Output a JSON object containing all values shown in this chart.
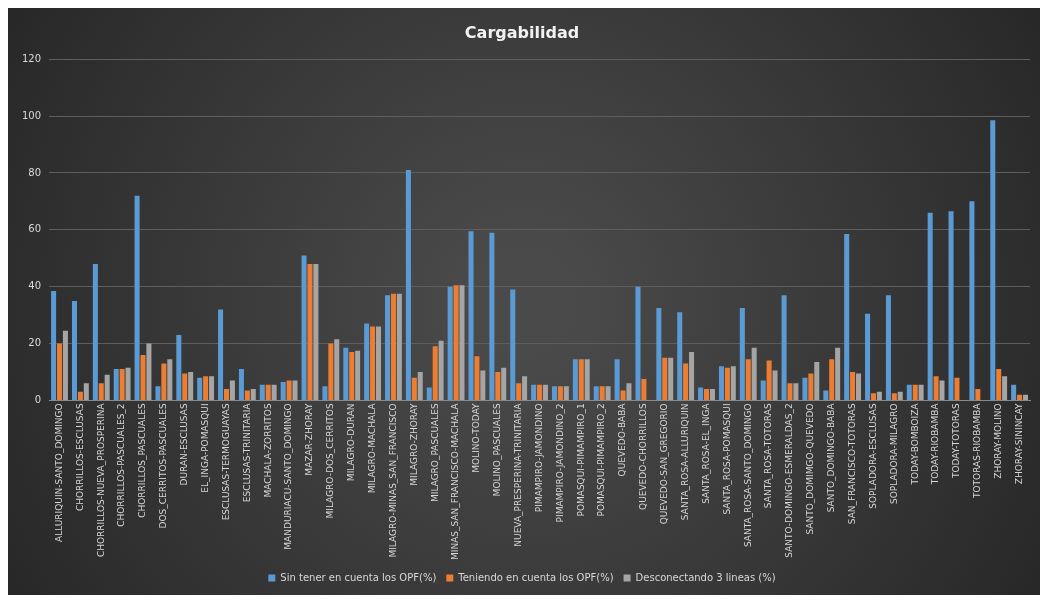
{
  "chart_data": {
    "type": "bar",
    "title": "Cargabilidad",
    "categories": [
      "ALLURIQUIN-SANTO_DOMINGO",
      "CHORRILLOS-ESCLUSAS",
      "CHORRILLOS-NUEVA_PROSPERINA",
      "CHORRILLOS-PASCUALES_2",
      "CHORRILLOS_PASCUALES",
      "DOS_CERRITOS-PASCUALES",
      "DURAN-ESCLUSAS",
      "EL_INGA-POMASQUI",
      "ESCLUSAS-TERMOGUAYAS",
      "ESCLUSAS-TRINITARIA",
      "MACHALA-ZORRITOS",
      "MANDURIACU-SANTO_DOMINGO",
      "MAZAR-ZHORAY",
      "MILAGRO-DOS_CERRITOS",
      "MILAGRO-DURAN",
      "MILAGRO-MACHALA",
      "MILAGRO-MINAS_SAN_FRANCISCO",
      "MILAGRO-ZHORAY",
      "MILAGRO_PASCUALES",
      "MINAS_SAN_FRANCISCO-MACHALA",
      "MOLINO-TODAY",
      "MOLINO_PASCUALES",
      "NUEVA_PRESPERINA-TRINITARIA",
      "PIMAMPIRO-JAMONDINO",
      "PIMAMPIRO-JAMONDINO_2",
      "POMASQUI-PIMAMPIRO_1",
      "POMASQUI-PIMAMPIRO_2",
      "QUEVEDO-BABA",
      "QUEVEDO-CHORRILLOS",
      "QUEVEDO-SAN_GREGORIO",
      "SANTA_ROSA-ALLURIQUIN",
      "SANTA_ROSA-EL_INGA",
      "SANTA_ROSA-POMASQUI",
      "SANTA_ROSA-SANTO_DOMINGO",
      "SANTA_ROSA-TOTORAS",
      "SANTO-DOMINGO-ESMERALDAS_2",
      "SANTO_DOMIMGO-QUEVEDO",
      "SANTO_DOMINGO-BABA",
      "SAN_FRANCISCO-TOTORAS",
      "SOPLADORA-ESCLUSAS",
      "SOPLADORA-MILAGRO",
      "TODAY-BOMBOIZA",
      "TODAY-RIOBAMBA",
      "TODAY-TOTORAS",
      "TOTORAS-RIOBAMBA",
      "ZHORAY-MOLINO",
      "ZHORAY-SININCAY"
    ],
    "series": [
      {
        "name": "Sin tener en cuenta los OPF(%)",
        "color": "#5b9bd5",
        "values": [
          38.5,
          35,
          48,
          11,
          72,
          5,
          23,
          8,
          32,
          11,
          5.5,
          6.5,
          51,
          5,
          18.5,
          27,
          37,
          81,
          4.5,
          40,
          59.5,
          59,
          39,
          5.5,
          5,
          14.5,
          5,
          14.5,
          40,
          32.5,
          31,
          4.5,
          12,
          32.5,
          7,
          37,
          8,
          3.5,
          58.5,
          30.5,
          37,
          5.5,
          66,
          66.5,
          70,
          98.5,
          5.5
        ]
      },
      {
        "name": "Teniendo en cuenta los OPF(%)",
        "color": "#ed7d31",
        "values": [
          20,
          3,
          6,
          11,
          16,
          13,
          9.5,
          8.5,
          4,
          3.5,
          5.5,
          7,
          48,
          20,
          17,
          26,
          37.5,
          8,
          19,
          40.5,
          15.5,
          10,
          6,
          5.5,
          5,
          14.5,
          5,
          3.5,
          7.5,
          15,
          13,
          4,
          11.5,
          14.5,
          14,
          6,
          9.5,
          14.5,
          10,
          2.5,
          2.5,
          5.5,
          8.5,
          8,
          4,
          11,
          2
        ]
      },
      {
        "name": "Desconectando 3 lineas (%)",
        "color": "#a5a5a5",
        "values": [
          24.5,
          6,
          9,
          11.5,
          20,
          14.5,
          10,
          8.5,
          7,
          4,
          5.5,
          7,
          48,
          21.5,
          17.5,
          26,
          37.5,
          10,
          21,
          40.5,
          10.5,
          11.5,
          8.5,
          5.5,
          5,
          14.5,
          5,
          6,
          null,
          15,
          17,
          4,
          12,
          18.5,
          10.5,
          6,
          13.5,
          18.5,
          9.5,
          3,
          3,
          5.5,
          7,
          null,
          null,
          8.5,
          2
        ]
      }
    ],
    "ylim": [
      0,
      120
    ],
    "yticks": [
      0,
      20,
      40,
      60,
      80,
      100,
      120
    ],
    "grid": "y",
    "legend": "bottom"
  }
}
